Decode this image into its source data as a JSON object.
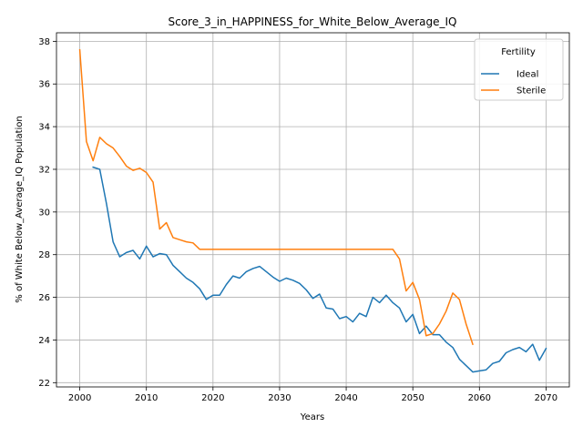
{
  "chart_data": {
    "type": "line",
    "title": "Score_3_in_HAPPINESS_for_White_Below_Average_IQ",
    "xlabel": "Years",
    "ylabel": "% of White Below_Average_IQ Population",
    "xlim": [
      1996.5,
      2073.5
    ],
    "ylim": [
      21.8,
      38.4
    ],
    "xticks": [
      2000,
      2010,
      2020,
      2030,
      2040,
      2050,
      2060,
      2070
    ],
    "yticks": [
      22,
      24,
      26,
      28,
      30,
      32,
      34,
      36,
      38
    ],
    "grid": true,
    "legend": {
      "title": "Fertility",
      "placement": "top-right"
    },
    "series": [
      {
        "name": "Ideal",
        "color": "#1f77b4",
        "x": [
          2002,
          2003,
          2004,
          2005,
          2006,
          2007,
          2008,
          2009,
          2010,
          2011,
          2012,
          2013,
          2014,
          2015,
          2016,
          2017,
          2018,
          2019,
          2020,
          2021,
          2022,
          2023,
          2024,
          2025,
          2026,
          2027,
          2028,
          2029,
          2030,
          2031,
          2032,
          2033,
          2034,
          2035,
          2036,
          2037,
          2038,
          2039,
          2040,
          2041,
          2042,
          2043,
          2044,
          2045,
          2046,
          2047,
          2048,
          2049,
          2050,
          2051,
          2052,
          2053,
          2054,
          2055,
          2056,
          2057,
          2058,
          2059,
          2060,
          2061,
          2062,
          2063,
          2064,
          2065,
          2066,
          2067,
          2068,
          2069,
          2070
        ],
        "values": [
          32.1,
          32.0,
          30.4,
          28.6,
          27.9,
          28.1,
          28.2,
          27.8,
          28.4,
          27.9,
          28.05,
          28.0,
          27.5,
          27.2,
          26.9,
          26.7,
          26.4,
          25.9,
          26.1,
          26.1,
          26.6,
          27.0,
          26.9,
          27.2,
          27.35,
          27.45,
          27.2,
          26.95,
          26.75,
          26.9,
          26.8,
          26.65,
          26.35,
          25.95,
          26.15,
          25.5,
          25.45,
          25.0,
          25.1,
          24.85,
          25.25,
          25.1,
          26.0,
          25.75,
          26.1,
          25.75,
          25.5,
          24.85,
          25.2,
          24.3,
          24.65,
          24.25,
          24.25,
          23.9,
          23.65,
          23.1,
          22.8,
          22.5,
          22.55,
          22.6,
          22.9,
          23.0,
          23.4,
          23.55,
          23.65,
          23.45,
          23.8,
          23.05,
          23.6
        ]
      },
      {
        "name": "Sterile",
        "color": "#ff7f0e",
        "x": [
          2000,
          2001,
          2002,
          2003,
          2004,
          2005,
          2006,
          2007,
          2008,
          2009,
          2010,
          2011,
          2012,
          2013,
          2014,
          2015,
          2016,
          2017,
          2018,
          2019,
          2020,
          2021,
          2022,
          2023,
          2024,
          2025,
          2026,
          2027,
          2028,
          2029,
          2030,
          2031,
          2032,
          2033,
          2034,
          2035,
          2036,
          2037,
          2038,
          2039,
          2040,
          2041,
          2042,
          2043,
          2044,
          2045,
          2046,
          2047,
          2048,
          2049,
          2050,
          2051,
          2052,
          2053,
          2054,
          2055,
          2056,
          2057,
          2058,
          2059
        ],
        "values": [
          37.6,
          33.3,
          32.4,
          33.5,
          33.2,
          33.0,
          32.6,
          32.15,
          31.95,
          32.05,
          31.85,
          31.4,
          29.2,
          29.5,
          28.8,
          28.7,
          28.6,
          28.55,
          28.25,
          28.25,
          28.25,
          28.25,
          28.25,
          28.25,
          28.25,
          28.25,
          28.25,
          28.25,
          28.25,
          28.25,
          28.25,
          28.25,
          28.25,
          28.25,
          28.25,
          28.25,
          28.25,
          28.25,
          28.25,
          28.25,
          28.25,
          28.25,
          28.25,
          28.25,
          28.25,
          28.25,
          28.25,
          28.25,
          27.8,
          26.3,
          26.7,
          25.9,
          24.2,
          24.3,
          24.75,
          25.35,
          26.2,
          25.9,
          24.75,
          23.8
        ]
      }
    ]
  }
}
